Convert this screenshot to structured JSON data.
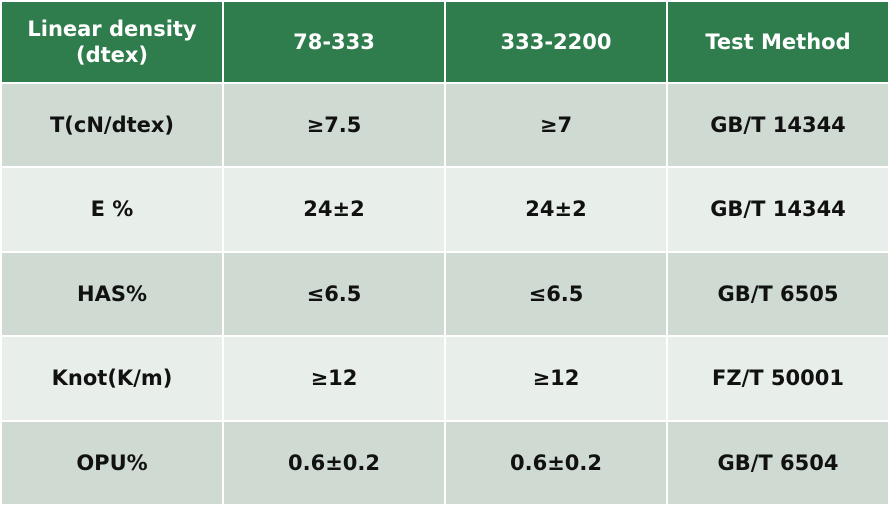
{
  "table": {
    "header": [
      "Linear density\n(dtex)",
      "78-333",
      "333-2200",
      "Test Method"
    ],
    "rows": [
      [
        "T(cN/dtex)",
        "≥7.5",
        "≥7",
        "GB/T 14344"
      ],
      [
        "E %",
        "24±2",
        "24±2",
        "GB/T 14344"
      ],
      [
        "HAS%",
        "≤6.5",
        "≤6.5",
        "GB/T 6505"
      ],
      [
        "Knot(K/m)",
        "≥12",
        "≥12",
        "FZ/T 50001"
      ],
      [
        "OPU%",
        "0.6±0.2",
        "0.6±0.2",
        "GB/T 6504"
      ]
    ]
  }
}
